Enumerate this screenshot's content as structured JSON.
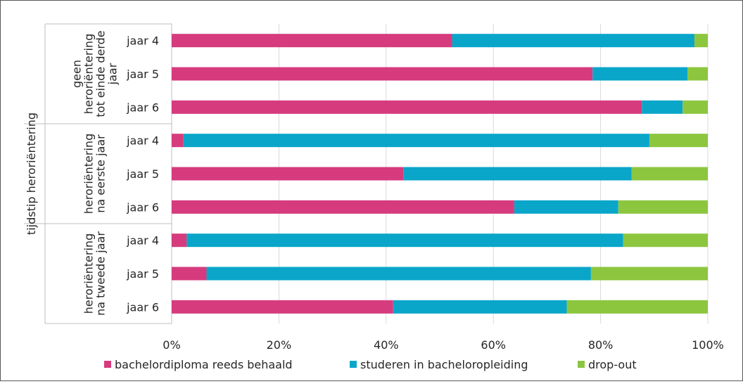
{
  "colors": {
    "bachelor": "#D63B7E",
    "studeren": "#0AA6CA",
    "dropout": "#8CC63F",
    "grid": "#D9D9D9",
    "axis": "#BFBFBF",
    "frame": "#595959"
  },
  "chart_data": {
    "type": "bar",
    "orientation": "horizontal",
    "stacked": "percent",
    "outer_label": "tijdstip heroriëntering",
    "groups": [
      {
        "label_lines": [
          "geen",
          "heroriëntering",
          "tot einde derde",
          "jaar"
        ],
        "categories": [
          "jaar 4",
          "jaar 5",
          "jaar 6"
        ]
      },
      {
        "label_lines": [
          "heroriëntering",
          "na eerste jaar"
        ],
        "categories": [
          "jaar 4",
          "jaar 5",
          "jaar 6"
        ]
      },
      {
        "label_lines": [
          "heroriëntering",
          "na tweede jaar"
        ],
        "categories": [
          "jaar 4",
          "jaar 5",
          "jaar 6"
        ]
      }
    ],
    "series": [
      {
        "name": "bachelordiploma reeds behaald",
        "color_key": "bachelor",
        "values": [
          52.3,
          78.5,
          87.7,
          2.2,
          43.2,
          63.9,
          2.8,
          6.5,
          41.3
        ]
      },
      {
        "name": "studeren in bacheloropleiding",
        "color_key": "studeren",
        "values": [
          45.2,
          17.7,
          7.6,
          86.9,
          42.6,
          19.4,
          81.4,
          71.7,
          32.4
        ]
      },
      {
        "name": "drop-out",
        "color_key": "dropout",
        "values": [
          2.5,
          3.8,
          4.7,
          10.9,
          14.2,
          16.7,
          15.8,
          21.8,
          26.3
        ]
      }
    ],
    "xlim": [
      0,
      100
    ],
    "x_ticks": [
      "0%",
      "20%",
      "40%",
      "60%",
      "80%",
      "100%"
    ],
    "grid": true,
    "legend_position": "bottom"
  }
}
